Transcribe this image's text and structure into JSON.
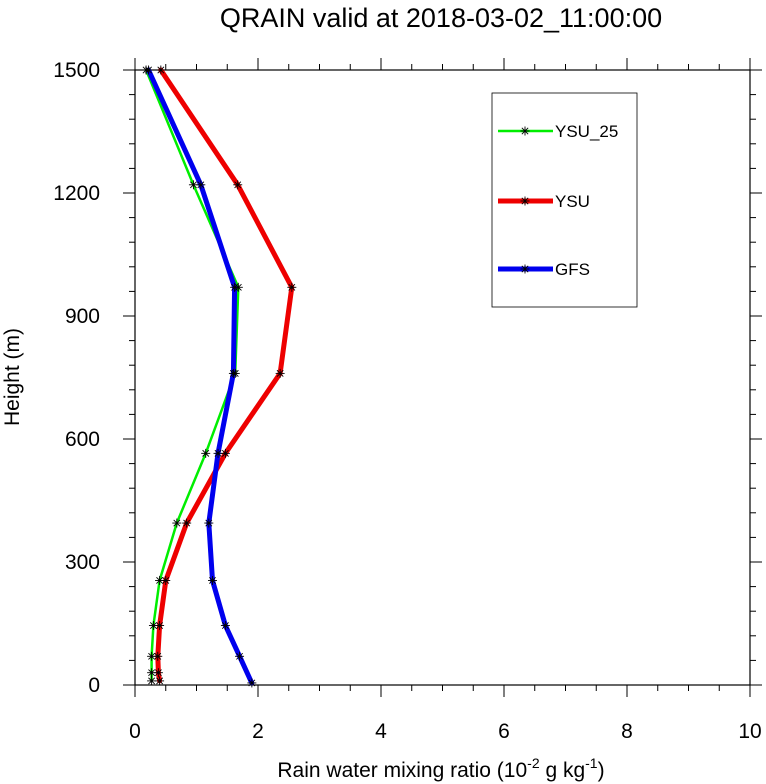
{
  "chart_data": {
    "type": "line",
    "title": "QRAIN valid at 2018-03-02_11:00:00",
    "xlabel": {
      "main": "Rain water mixing ratio (10",
      "sup1": "-2",
      "mid": " g kg",
      "sup2": "-1",
      "end": ")"
    },
    "ylabel": "Height (m)",
    "xlim": [
      0,
      10
    ],
    "ylim": [
      0,
      1500
    ],
    "xticks": [
      0,
      2,
      4,
      6,
      8,
      10
    ],
    "yticks": [
      0,
      300,
      600,
      900,
      1200,
      1500
    ],
    "legend_position": "top-right",
    "grid": false,
    "series": [
      {
        "name": "YSU_25",
        "color": "#00ee00",
        "heights": [
          10,
          30,
          70,
          145,
          255,
          395,
          565,
          760,
          970,
          1220,
          1500
        ],
        "values": [
          0.27,
          0.27,
          0.27,
          0.3,
          0.4,
          0.68,
          1.15,
          1.63,
          1.68,
          0.95,
          0.18
        ]
      },
      {
        "name": "YSU",
        "color": "#ee0000",
        "heights": [
          10,
          30,
          70,
          145,
          255,
          395,
          565,
          760,
          970,
          1220,
          1500
        ],
        "values": [
          0.4,
          0.38,
          0.37,
          0.4,
          0.5,
          0.84,
          1.47,
          2.36,
          2.55,
          1.67,
          0.42
        ]
      },
      {
        "name": "GFS",
        "color": "#0000ee",
        "heights": [
          5,
          70,
          145,
          255,
          395,
          565,
          760,
          970,
          1220,
          1500
        ],
        "values": [
          1.9,
          1.7,
          1.47,
          1.26,
          1.2,
          1.35,
          1.6,
          1.62,
          1.07,
          0.22
        ]
      }
    ]
  }
}
